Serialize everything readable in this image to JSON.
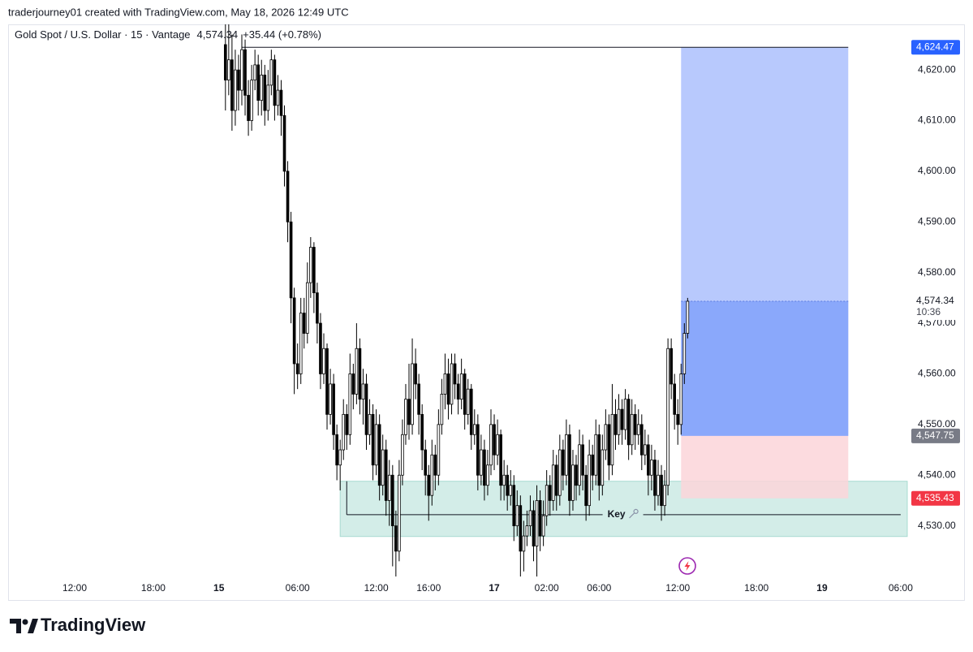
{
  "header": {
    "text": "traderjourney01 created with TradingView.com, May 18, 2026 12:49 UTC"
  },
  "footer": {
    "logo": "TradingView"
  },
  "chart_data": {
    "type": "candlestick",
    "title": "Gold Spot / U.S. Dollar · 15 · Vantage",
    "change": "+35.44 (+0.78%)",
    "last": {
      "value": 4574.34,
      "label": "4,574.34",
      "countdown": "10:36"
    },
    "ylim": [
      4520,
      4629
    ],
    "yticks": [
      {
        "value": 4530,
        "label": "4,530.00"
      },
      {
        "value": 4540,
        "label": "4,540.00"
      },
      {
        "value": 4550,
        "label": "4,550.00"
      },
      {
        "value": 4560,
        "label": "4,560.00"
      },
      {
        "value": 4570,
        "label": "4,570.00"
      },
      {
        "value": 4580,
        "label": "4,580.00"
      },
      {
        "value": 4590,
        "label": "4,590.00"
      },
      {
        "value": 4600,
        "label": "4,600.00"
      },
      {
        "value": 4610,
        "label": "4,610.00"
      },
      {
        "value": 4620,
        "label": "4,620.00"
      }
    ],
    "xlim": [
      -20.3,
      254.5
    ],
    "xticks": [
      {
        "value": 0,
        "label": "12:00"
      },
      {
        "value": 24,
        "label": "18:00"
      },
      {
        "value": 44,
        "label": "15"
      },
      {
        "value": 68,
        "label": "06:00"
      },
      {
        "value": 92,
        "label": "12:00"
      },
      {
        "value": 108,
        "label": "16:00"
      },
      {
        "value": 128,
        "label": "17"
      },
      {
        "value": 144,
        "label": "02:00"
      },
      {
        "value": 160,
        "label": "06:00"
      },
      {
        "value": 184,
        "label": "12:00"
      },
      {
        "value": 208,
        "label": "18:00"
      },
      {
        "value": 228,
        "label": "19"
      },
      {
        "value": 252,
        "label": "06:00"
      }
    ],
    "grid": false,
    "up_color": "#ffffff",
    "down_color": "#000000",
    "candles": {
      "x": [
        46,
        47,
        48,
        49,
        50,
        51,
        52,
        53,
        54,
        55,
        56,
        57,
        58,
        59,
        60,
        61,
        62,
        63,
        64,
        65,
        66,
        67,
        68,
        69,
        70,
        71,
        72,
        73,
        74,
        75,
        76,
        77,
        78,
        79,
        80,
        81,
        82,
        83,
        84,
        85,
        86,
        87,
        88,
        89,
        90,
        91,
        92,
        93,
        94,
        95,
        96,
        97,
        98,
        99,
        100,
        101,
        102,
        103,
        104,
        105,
        106,
        107,
        108,
        109,
        110,
        111,
        112,
        113,
        114,
        115,
        116,
        117,
        118,
        119,
        120,
        121,
        122,
        123,
        124,
        125,
        126,
        127,
        128,
        129,
        130,
        131,
        132,
        133,
        134,
        135,
        136,
        137,
        138,
        139,
        140,
        141,
        142,
        143,
        144,
        145,
        146,
        147,
        148,
        149,
        150,
        151,
        152,
        153,
        154,
        155,
        156,
        157,
        158,
        159,
        160,
        161,
        162,
        163,
        164,
        165,
        166,
        167,
        168,
        169,
        170,
        171,
        172,
        173,
        174,
        175,
        176,
        177,
        178,
        179,
        180,
        181,
        182,
        183,
        184,
        185,
        186,
        187
      ],
      "open": [
        4625,
        4618,
        4622,
        4612,
        4620,
        4616,
        4624,
        4615,
        4610,
        4618,
        4621,
        4614,
        4619,
        4612,
        4617,
        4622,
        4613,
        4616,
        4611,
        4600,
        4590,
        4575,
        4562,
        4560,
        4572,
        4568,
        4578,
        4585,
        4576,
        4570,
        4560,
        4565,
        4552,
        4558,
        4548,
        4542,
        4545,
        4552,
        4548,
        4560,
        4556,
        4565,
        4555,
        4558,
        4548,
        4552,
        4542,
        4550,
        4538,
        4545,
        4535,
        4540,
        4530,
        4525,
        4540,
        4548,
        4555,
        4550,
        4562,
        4558,
        4552,
        4545,
        4540,
        4536,
        4544,
        4540,
        4550,
        4556,
        4560,
        4554,
        4562,
        4558,
        4555,
        4560,
        4552,
        4557,
        4548,
        4550,
        4540,
        4545,
        4538,
        4542,
        4550,
        4544,
        4548,
        4538,
        4540,
        4536,
        4538,
        4530,
        4534,
        4525,
        4528,
        4530,
        4533,
        4526,
        4535,
        4528,
        4532,
        4538,
        4535,
        4542,
        4536,
        4545,
        4540,
        4548,
        4535,
        4542,
        4538,
        4546,
        4540,
        4534,
        4544,
        4540,
        4548,
        4538,
        4545,
        4550,
        4542,
        4552,
        4548,
        4553,
        4549,
        4555,
        4546,
        4552,
        4548,
        4550,
        4544,
        4546,
        4540,
        4543,
        4536,
        4540,
        4534,
        4538,
        4565,
        4558,
        4552,
        4550,
        4560,
        4568
      ],
      "high": [
        4629,
        4629,
        4627,
        4624,
        4623,
        4627,
        4626,
        4618,
        4621,
        4624,
        4623,
        4622,
        4621,
        4620,
        4624,
        4623,
        4619,
        4618,
        4613,
        4602,
        4592,
        4577,
        4566,
        4575,
        4575,
        4582,
        4587,
        4586,
        4578,
        4572,
        4568,
        4566,
        4561,
        4560,
        4550,
        4547,
        4555,
        4554,
        4564,
        4562,
        4570,
        4567,
        4561,
        4560,
        4555,
        4554,
        4553,
        4552,
        4548,
        4547,
        4543,
        4542,
        4533,
        4543,
        4551,
        4558,
        4562,
        4567,
        4565,
        4560,
        4554,
        4547,
        4542,
        4547,
        4546,
        4553,
        4559,
        4564,
        4563,
        4564,
        4564,
        4560,
        4563,
        4561,
        4559,
        4558,
        4553,
        4552,
        4548,
        4547,
        4545,
        4553,
        4552,
        4551,
        4549,
        4543,
        4542,
        4541,
        4540,
        4537,
        4536,
        4531,
        4533,
        4536,
        4535,
        4538,
        4537,
        4535,
        4541,
        4540,
        4545,
        4544,
        4548,
        4547,
        4551,
        4550,
        4545,
        4544,
        4549,
        4548,
        4542,
        4547,
        4546,
        4551,
        4550,
        4548,
        4553,
        4552,
        4558,
        4555,
        4556,
        4555,
        4557,
        4556,
        4555,
        4554,
        4553,
        4552,
        4549,
        4548,
        4546,
        4545,
        4543,
        4542,
        4541,
        4567,
        4567,
        4560,
        4555,
        4562,
        4570,
        4575
      ],
      "low": [
        4612,
        4615,
        4608,
        4609,
        4612,
        4613,
        4611,
        4607,
        4608,
        4616,
        4611,
        4611,
        4609,
        4610,
        4615,
        4610,
        4611,
        4607,
        4597,
        4586,
        4570,
        4556,
        4557,
        4558,
        4565,
        4566,
        4575,
        4572,
        4566,
        4557,
        4558,
        4549,
        4550,
        4545,
        4539,
        4537,
        4543,
        4545,
        4546,
        4553,
        4554,
        4552,
        4550,
        4545,
        4546,
        4539,
        4540,
        4535,
        4536,
        4532,
        4530,
        4522,
        4520,
        4523,
        4538,
        4546,
        4547,
        4548,
        4555,
        4548,
        4541,
        4536,
        4531,
        4534,
        4537,
        4538,
        4548,
        4553,
        4551,
        4552,
        4555,
        4552,
        4553,
        4549,
        4550,
        4545,
        4546,
        4537,
        4538,
        4535,
        4536,
        4540,
        4541,
        4542,
        4535,
        4535,
        4533,
        4534,
        4527,
        4528,
        4520,
        4521,
        4526,
        4528,
        4523,
        4520,
        4525,
        4526,
        4530,
        4532,
        4533,
        4533,
        4534,
        4537,
        4538,
        4532,
        4533,
        4535,
        4536,
        4537,
        4531,
        4532,
        4537,
        4538,
        4535,
        4536,
        4543,
        4539,
        4540,
        4545,
        4546,
        4546,
        4547,
        4543,
        4544,
        4545,
        4546,
        4541,
        4542,
        4536,
        4537,
        4533,
        4534,
        4531,
        4532,
        4536,
        4555,
        4549,
        4546,
        4548,
        4558,
        4567
      ],
      "close": [
        4618,
        4622,
        4612,
        4620,
        4616,
        4624,
        4615,
        4610,
        4618,
        4621,
        4614,
        4619,
        4612,
        4617,
        4622,
        4613,
        4616,
        4611,
        4600,
        4590,
        4575,
        4562,
        4560,
        4572,
        4568,
        4578,
        4585,
        4576,
        4570,
        4560,
        4565,
        4552,
        4558,
        4548,
        4542,
        4545,
        4552,
        4548,
        4560,
        4556,
        4565,
        4555,
        4558,
        4548,
        4552,
        4542,
        4550,
        4538,
        4545,
        4535,
        4540,
        4530,
        4525,
        4540,
        4548,
        4555,
        4550,
        4562,
        4558,
        4552,
        4545,
        4540,
        4536,
        4544,
        4540,
        4550,
        4556,
        4560,
        4554,
        4562,
        4558,
        4555,
        4560,
        4552,
        4557,
        4548,
        4550,
        4540,
        4545,
        4538,
        4542,
        4550,
        4544,
        4548,
        4538,
        4540,
        4536,
        4538,
        4530,
        4534,
        4525,
        4528,
        4530,
        4533,
        4526,
        4535,
        4528,
        4532,
        4538,
        4535,
        4542,
        4536,
        4545,
        4540,
        4548,
        4535,
        4542,
        4538,
        4546,
        4540,
        4534,
        4544,
        4540,
        4548,
        4538,
        4545,
        4550,
        4542,
        4552,
        4548,
        4553,
        4549,
        4555,
        4546,
        4552,
        4548,
        4550,
        4544,
        4546,
        4540,
        4543,
        4536,
        4540,
        4534,
        4538,
        4565,
        4558,
        4552,
        4550,
        4560,
        4568,
        4574.34
      ]
    },
    "top_line": {
      "x": [
        51,
        236
      ]
    },
    "position": {
      "x": [
        185,
        236
      ],
      "target": 4624.47,
      "entry": 4547.75,
      "stop": 4535.43,
      "labels": {
        "target": "4,624.47",
        "entry": "4,547.75",
        "stop": "4,535.43"
      },
      "colors": {
        "target": "#2962ff",
        "entry": "#787b86",
        "stop": "#f23645",
        "profit_zone": "#b8c9fd",
        "open_profit": "#8aa8fb",
        "loss_zone": "#fbd5d9"
      }
    },
    "zone": {
      "x": [
        81,
        254
      ],
      "range": [
        4527.9,
        4538.8
      ],
      "color": "#d3ede8",
      "border": "#a8dbd1"
    },
    "key_line": {
      "x": [
        83,
        252
      ],
      "value": 4532.2,
      "label": "Key"
    }
  }
}
